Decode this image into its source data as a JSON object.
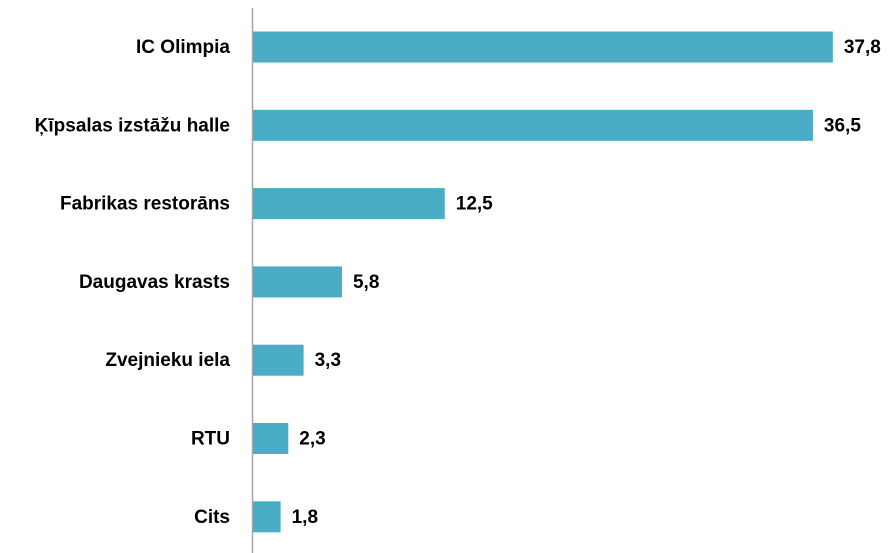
{
  "chart_data": {
    "type": "bar",
    "orientation": "horizontal",
    "categories": [
      "IC Olimpia",
      "Ķīpsalas izstāžu halle",
      "Fabrikas restorāns",
      "Daugavas krasts",
      "Zvejnieku iela",
      "RTU",
      "Cits"
    ],
    "values": [
      37.8,
      36.5,
      12.5,
      5.8,
      3.3,
      2.3,
      1.8
    ],
    "value_labels": [
      "37,8",
      "36,5",
      "12,5",
      "5,8",
      "3,3",
      "2,3",
      "1,8"
    ],
    "color": "#4bacc6"
  }
}
